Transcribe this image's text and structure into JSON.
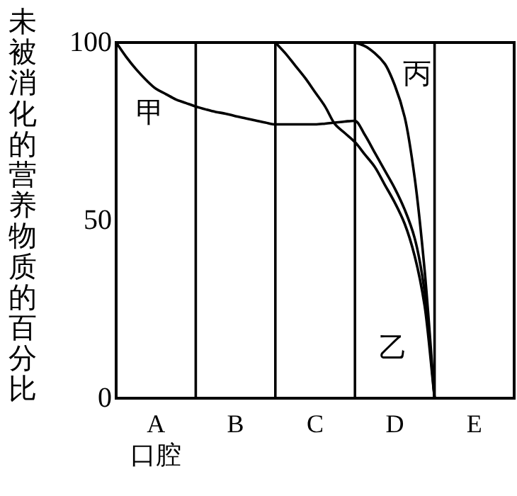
{
  "chart_data": {
    "type": "line",
    "ylabel": "未被消化的营养物质的百分比",
    "categories": [
      null,
      null,
      null,
      null,
      "A\n口腔",
      null,
      null,
      null,
      null,
      null,
      null,
      null,
      "B",
      null,
      null,
      null,
      null,
      null,
      null,
      null,
      "C",
      null,
      null,
      null,
      null,
      null,
      null,
      null,
      "D",
      null,
      null,
      null,
      null,
      null,
      null,
      null,
      "E",
      null,
      null,
      null,
      null
    ],
    "ylim": [
      0,
      100
    ],
    "yticks": [
      0,
      50,
      100
    ],
    "marker": "none",
    "line_style": "solid",
    "series": [
      {
        "name": "甲",
        "color": "#000000",
        "values": [
          100,
          96,
          92.5,
          89.5,
          87,
          85.5,
          84,
          83,
          82,
          81.2,
          80.5,
          80,
          79.3,
          78.7,
          78.1,
          77.5,
          77,
          77,
          77,
          77,
          77,
          77.2,
          77.5,
          77.8,
          78,
          74,
          69,
          64,
          59,
          53,
          45,
          30,
          0,
          null,
          null,
          null,
          null,
          null,
          null,
          null,
          null
        ]
      },
      {
        "name": "乙",
        "color": "#000000",
        "values": [
          null,
          null,
          null,
          null,
          null,
          null,
          null,
          null,
          null,
          null,
          null,
          null,
          null,
          null,
          null,
          null,
          100,
          97,
          93.5,
          90,
          86,
          82,
          77,
          74.5,
          72,
          68.5,
          65,
          60,
          55,
          49,
          40,
          26,
          0,
          null,
          null,
          null,
          null,
          null,
          null,
          null,
          null
        ]
      },
      {
        "name": "丙",
        "color": "#000000",
        "values": [
          null,
          null,
          null,
          null,
          null,
          null,
          null,
          null,
          null,
          null,
          null,
          null,
          null,
          null,
          null,
          null,
          null,
          null,
          null,
          null,
          null,
          null,
          null,
          null,
          100,
          99,
          97,
          94,
          88,
          79,
          62,
          36,
          0,
          null,
          null,
          null,
          null,
          null,
          null,
          null,
          null
        ]
      }
    ]
  }
}
